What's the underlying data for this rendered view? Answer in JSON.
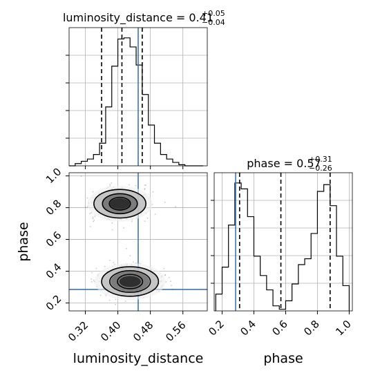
{
  "chart_data": {
    "type": "corner",
    "parameters": [
      "luminosity_distance",
      "phase"
    ],
    "truths": {
      "luminosity_distance": 0.45,
      "phase": 0.285
    },
    "truth_color": "#3b75af",
    "grid": true,
    "titles": [
      {
        "param": "luminosity_distance",
        "prefix": "luminosity_distance = 0.41",
        "upper": "+0.05",
        "lower": "−0.04",
        "median": 0.41,
        "quantiles": [
          0.36,
          0.41,
          0.46
        ]
      },
      {
        "param": "phase",
        "prefix": "phase = 0.57",
        "upper": "+0.31",
        "lower": "−0.26",
        "median": 0.57,
        "quantiles": [
          0.31,
          0.57,
          0.88
        ]
      }
    ],
    "luminosity_distance_hist": {
      "xlim": [
        0.28,
        0.62
      ],
      "bin_edges": [
        0.28,
        0.295,
        0.31,
        0.325,
        0.34,
        0.355,
        0.37,
        0.385,
        0.4,
        0.415,
        0.43,
        0.445,
        0.46,
        0.475,
        0.49,
        0.505,
        0.52,
        0.535,
        0.55,
        0.565,
        0.58,
        0.595,
        0.61
      ],
      "counts": [
        0,
        2,
        4,
        6,
        10,
        20,
        52,
        88,
        112,
        113,
        105,
        89,
        63,
        36,
        20,
        10,
        6,
        3,
        1,
        0,
        0,
        0
      ]
    },
    "phase_hist": {
      "xlim": [
        0.15,
        1.02
      ],
      "bin_edges": [
        0.16,
        0.2,
        0.24,
        0.28,
        0.32,
        0.36,
        0.4,
        0.44,
        0.48,
        0.52,
        0.56,
        0.6,
        0.64,
        0.68,
        0.72,
        0.76,
        0.8,
        0.84,
        0.88,
        0.92,
        0.96,
        1.0
      ],
      "counts": [
        20,
        52,
        102,
        152,
        145,
        112,
        65,
        42,
        25,
        6,
        2,
        12,
        32,
        55,
        62,
        92,
        142,
        150,
        125,
        65,
        30
      ]
    },
    "joint_2d": {
      "xlabel": "luminosity_distance",
      "ylabel": "phase",
      "xlim": [
        0.28,
        0.62
      ],
      "ylim": [
        0.15,
        1.02
      ],
      "modes": [
        {
          "center": [
            0.405,
            0.825
          ],
          "levels": [
            [
              0.064,
              0.09
            ],
            [
              0.043,
              0.063
            ],
            [
              0.026,
              0.04
            ]
          ]
        },
        {
          "center": [
            0.43,
            0.335
          ],
          "levels": [
            [
              0.07,
              0.093
            ],
            [
              0.05,
              0.068
            ],
            [
              0.031,
              0.045
            ]
          ]
        }
      ]
    },
    "x_ticks_luminosity_distance": [
      {
        "value": 0.32,
        "label": "0.32"
      },
      {
        "value": 0.4,
        "label": "0.40"
      },
      {
        "value": 0.48,
        "label": "0.48"
      },
      {
        "value": 0.56,
        "label": "0.56"
      }
    ],
    "y_ticks_phase": [
      {
        "value": 0.2,
        "label": "0.2"
      },
      {
        "value": 0.4,
        "label": "0.4"
      },
      {
        "value": 0.6,
        "label": "0.6"
      },
      {
        "value": 0.8,
        "label": "0.8"
      },
      {
        "value": 1.0,
        "label": "1.0"
      }
    ],
    "x_ticks_phase": [
      {
        "value": 0.2,
        "label": "0.2"
      },
      {
        "value": 0.4,
        "label": "0.4"
      },
      {
        "value": 0.6,
        "label": "0.6"
      },
      {
        "value": 0.8,
        "label": "0.8"
      },
      {
        "value": 1.0,
        "label": "1.0"
      }
    ],
    "xlabels": [
      "luminosity_distance",
      "phase"
    ],
    "ylabel": "phase"
  }
}
